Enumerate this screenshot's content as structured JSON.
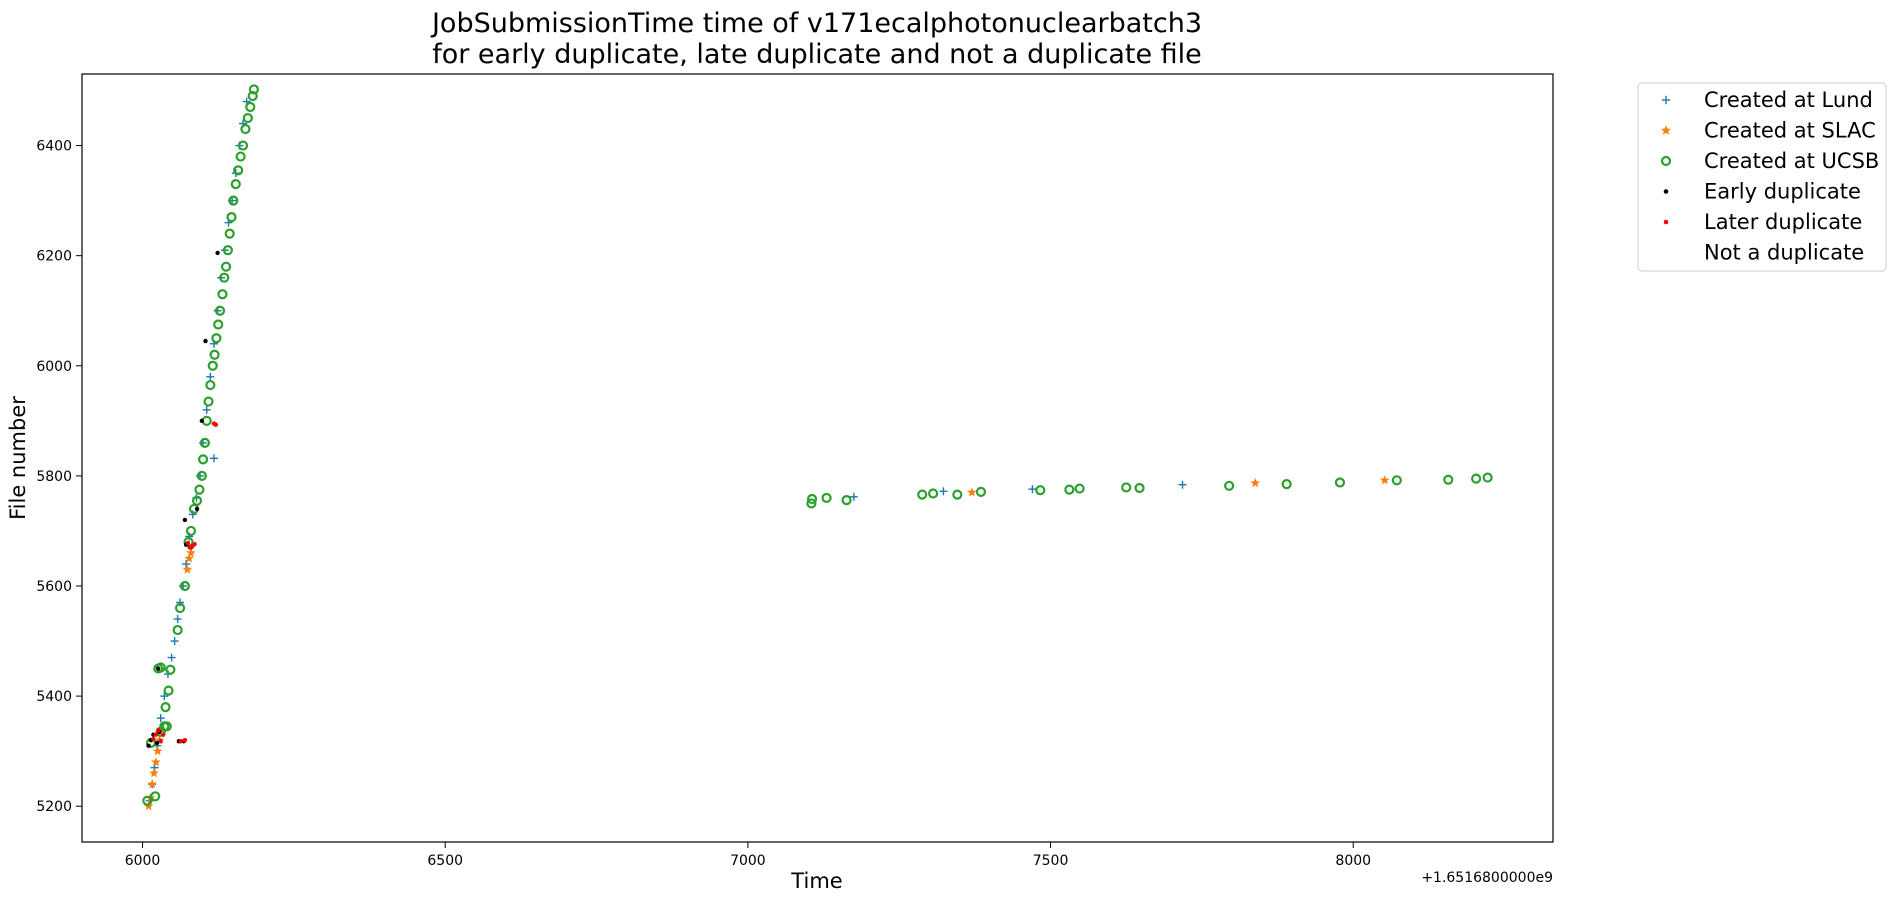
{
  "chart_data": {
    "type": "scatter",
    "title_lines": [
      "JobSubmissionTime time of v171ecalphotonuclearbatch3",
      "for early duplicate, late duplicate and not a duplicate file"
    ],
    "xlabel": "Time",
    "ylabel": "File number",
    "x_offset_label": "+1.6516800000e9",
    "xlim": [
      5900,
      8330
    ],
    "ylim": [
      5135,
      6530
    ],
    "xticks": [
      6000,
      6500,
      7000,
      7500,
      8000
    ],
    "yticks": [
      5200,
      5400,
      5600,
      5800,
      6000,
      6200,
      6400
    ],
    "grid": false,
    "legend_placement": "outside-top-right",
    "legend": [
      {
        "label": "Created at Lund",
        "marker": "plus",
        "color": "#1f77b4"
      },
      {
        "label": "Created at SLAC",
        "marker": "star",
        "color": "#ff7f0e"
      },
      {
        "label": "Created at UCSB",
        "marker": "circle",
        "color": "#2ca02c"
      },
      {
        "label": "Early duplicate",
        "marker": "point",
        "color": "#000000"
      },
      {
        "label": "Later duplicate",
        "marker": "point",
        "color": "#ff0000"
      },
      {
        "label": "Not a duplicate",
        "marker": "none",
        "color": "#ffffff"
      }
    ],
    "series": [
      {
        "name": "Created at Lund",
        "color": "#1f77b4",
        "marker": "plus",
        "points": [
          [
            6012,
            5210
          ],
          [
            6016,
            5240
          ],
          [
            6020,
            5270
          ],
          [
            6024,
            5310
          ],
          [
            6030,
            5360
          ],
          [
            6036,
            5400
          ],
          [
            6042,
            5440
          ],
          [
            6048,
            5470
          ],
          [
            6053,
            5500
          ],
          [
            6058,
            5540
          ],
          [
            6062,
            5570
          ],
          [
            6067,
            5600
          ],
          [
            6072,
            5640
          ],
          [
            6077,
            5690
          ],
          [
            6083,
            5730
          ],
          [
            6089,
            5760
          ],
          [
            6095,
            5800
          ],
          [
            6100,
            5860
          ],
          [
            6106,
            5920
          ],
          [
            6112,
            5980
          ],
          [
            6118,
            6040
          ],
          [
            6124,
            6100
          ],
          [
            6130,
            6160
          ],
          [
            6136,
            6210
          ],
          [
            6142,
            6260
          ],
          [
            6148,
            6300
          ],
          [
            6154,
            6350
          ],
          [
            6160,
            6400
          ],
          [
            6166,
            6440
          ],
          [
            6172,
            6480
          ],
          [
            6118,
            5832
          ],
          [
            7175,
            5762
          ],
          [
            7323,
            5772
          ],
          [
            7470,
            5776
          ],
          [
            7718,
            5784
          ]
        ]
      },
      {
        "name": "Created at SLAC",
        "color": "#ff7f0e",
        "marker": "star",
        "points": [
          [
            6010,
            5200
          ],
          [
            6013,
            5215
          ],
          [
            6016,
            5240
          ],
          [
            6019,
            5260
          ],
          [
            6022,
            5280
          ],
          [
            6025,
            5300
          ],
          [
            6028,
            5320
          ],
          [
            6031,
            5340
          ],
          [
            6074,
            5630
          ],
          [
            6077,
            5650
          ],
          [
            6080,
            5660
          ],
          [
            7370,
            5770
          ],
          [
            7838,
            5787
          ],
          [
            8052,
            5792
          ]
        ]
      },
      {
        "name": "Created at UCSB",
        "color": "#2ca02c",
        "marker": "circle",
        "points": [
          [
            6008,
            5210
          ],
          [
            6021,
            5218
          ],
          [
            6026,
            5450
          ],
          [
            6030,
            5452
          ],
          [
            6036,
            5345
          ],
          [
            6038,
            5380
          ],
          [
            6043,
            5410
          ],
          [
            6046,
            5448
          ],
          [
            6058,
            5520
          ],
          [
            6070,
            5600
          ],
          [
            6076,
            5680
          ],
          [
            6080,
            5700
          ],
          [
            6085,
            5740
          ],
          [
            6090,
            5755
          ],
          [
            6094,
            5775
          ],
          [
            6098,
            5800
          ],
          [
            6100,
            5830
          ],
          [
            6103,
            5860
          ],
          [
            6106,
            5900
          ],
          [
            6109,
            5935
          ],
          [
            6112,
            5965
          ],
          [
            6116,
            6000
          ],
          [
            6119,
            6020
          ],
          [
            6122,
            6050
          ],
          [
            6125,
            6075
          ],
          [
            6128,
            6100
          ],
          [
            6132,
            6130
          ],
          [
            6135,
            6160
          ],
          [
            6138,
            6180
          ],
          [
            6141,
            6210
          ],
          [
            6144,
            6240
          ],
          [
            6147,
            6270
          ],
          [
            6150,
            6300
          ],
          [
            6154,
            6330
          ],
          [
            6158,
            6355
          ],
          [
            6162,
            6380
          ],
          [
            6166,
            6400
          ],
          [
            6170,
            6430
          ],
          [
            6174,
            6450
          ],
          [
            6178,
            6470
          ],
          [
            6182,
            6490
          ],
          [
            6184,
            6502
          ],
          [
            6030,
            5335
          ],
          [
            6040,
            5345
          ],
          [
            6014,
            5315
          ],
          [
            6062,
            5560
          ],
          [
            7105,
            5750
          ],
          [
            7106,
            5758
          ],
          [
            7130,
            5760
          ],
          [
            7163,
            5756
          ],
          [
            7288,
            5766
          ],
          [
            7306,
            5768
          ],
          [
            7346,
            5766
          ],
          [
            7385,
            5771
          ],
          [
            7483,
            5774
          ],
          [
            7531,
            5775
          ],
          [
            7548,
            5777
          ],
          [
            7625,
            5779
          ],
          [
            7647,
            5778
          ],
          [
            7795,
            5782
          ],
          [
            7890,
            5785
          ],
          [
            7978,
            5788
          ],
          [
            8072,
            5792
          ],
          [
            8157,
            5793
          ],
          [
            8203,
            5795
          ],
          [
            8222,
            5797
          ]
        ]
      },
      {
        "name": "Early duplicate",
        "color": "#000000",
        "marker": "point",
        "points": [
          [
            6010,
            5310
          ],
          [
            6014,
            5320
          ],
          [
            6018,
            5330
          ],
          [
            6024,
            5315
          ],
          [
            6028,
            5335
          ],
          [
            6026,
            5450
          ],
          [
            6060,
            5318
          ],
          [
            6068,
            5318
          ],
          [
            6070,
            5720
          ],
          [
            6072,
            5675
          ],
          [
            6080,
            5670
          ],
          [
            6090,
            5740
          ],
          [
            6098,
            5900
          ],
          [
            6104,
            6045
          ],
          [
            6124,
            6205
          ]
        ]
      },
      {
        "name": "Later duplicate",
        "color": "#ff0000",
        "marker": "point",
        "points": [
          [
            6018,
            5322
          ],
          [
            6022,
            5330
          ],
          [
            6026,
            5338
          ],
          [
            6030,
            5318
          ],
          [
            6034,
            5330
          ],
          [
            6063,
            5318
          ],
          [
            6070,
            5320
          ],
          [
            6075,
            5678
          ],
          [
            6078,
            5670
          ],
          [
            6082,
            5672
          ],
          [
            6086,
            5676
          ],
          [
            6118,
            5895
          ],
          [
            6121,
            5893
          ]
        ]
      }
    ]
  }
}
